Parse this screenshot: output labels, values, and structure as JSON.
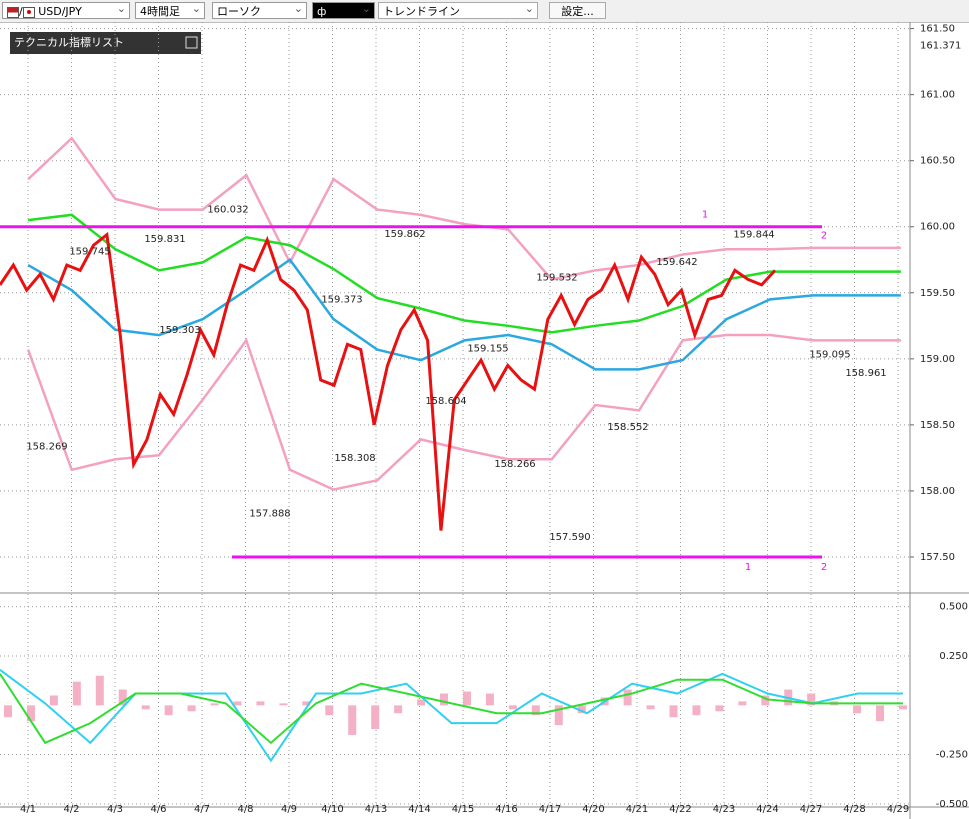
{
  "toolbar": {
    "symbol": "USD/JPY",
    "timeframe": "4時間足",
    "chart_style": "ローソク",
    "tool": "トレンドライン",
    "settings": "設定...",
    "indicator_list": "テクニカル指標リスト"
  },
  "chart_data": [
    {
      "type": "line",
      "categories": [
        "4/1",
        "4/2",
        "4/3",
        "4/6",
        "4/7",
        "4/8",
        "4/9",
        "4/10",
        "4/13",
        "4/14",
        "4/15",
        "4/16",
        "4/17",
        "4/20",
        "4/21",
        "4/22",
        "4/23",
        "4/24",
        "4/27",
        "4/28",
        "4/29"
      ],
      "ylim": [
        157.25,
        161.55
      ],
      "yticks": [
        {
          "value": 161.5,
          "label": "161.50"
        },
        {
          "value": 161,
          "label": "161.00"
        },
        {
          "value": 160.5,
          "label": "160.50"
        },
        {
          "value": 160,
          "label": "160.00"
        },
        {
          "value": 159.5,
          "label": "159.50"
        },
        {
          "value": 159,
          "label": "159.00"
        },
        {
          "value": 158.5,
          "label": "158.50"
        },
        {
          "value": 158,
          "label": "158.00"
        },
        {
          "value": 157.5,
          "label": "157.50"
        }
      ],
      "price_label": {
        "value": 161.371,
        "label": "161.371"
      },
      "grid": true,
      "series": [
        {
          "name": "BB +2σ",
          "color": "#f4a0c0",
          "values": [
            160.36,
            160.67,
            160.21,
            160.13,
            160.13,
            160.39,
            159.73,
            160.36,
            160.13,
            160.09,
            160.02,
            159.98,
            159.6,
            159.67,
            159.71,
            159.79,
            159.83,
            159.83,
            159.84,
            159.84,
            159.84
          ]
        },
        {
          "name": "BB -2σ",
          "color": "#f4a0c0",
          "values": [
            159.07,
            158.16,
            158.24,
            158.27,
            158.69,
            159.14,
            158.16,
            158.01,
            158.08,
            158.39,
            158.31,
            158.24,
            158.24,
            158.65,
            158.61,
            159.14,
            159.18,
            159.18,
            159.14,
            159.14,
            159.14
          ]
        },
        {
          "name": "MA",
          "color": "#2aa8e0",
          "values": [
            159.71,
            159.52,
            159.22,
            159.18,
            159.3,
            159.52,
            159.75,
            159.3,
            159.07,
            158.99,
            159.14,
            159.18,
            159.11,
            158.92,
            158.92,
            158.99,
            159.3,
            159.45,
            159.48,
            159.48,
            159.48
          ]
        },
        {
          "name": "BB mid",
          "color": "#22dd22",
          "values": [
            160.05,
            160.09,
            159.83,
            159.67,
            159.73,
            159.92,
            159.86,
            159.68,
            159.46,
            159.38,
            159.29,
            159.25,
            159.2,
            159.25,
            159.29,
            159.4,
            159.6,
            159.66,
            159.66,
            159.66,
            159.66
          ]
        }
      ],
      "lagging_span": {
        "color": "#e81010",
        "values": [
          159.56,
          159.71,
          159.52,
          159.64,
          159.45,
          159.71,
          159.67,
          159.86,
          159.94,
          159.18,
          158.2,
          158.39,
          158.73,
          158.58,
          158.88,
          159.22,
          159.03,
          159.41,
          159.71,
          159.67,
          159.9,
          159.6,
          159.52,
          159.37,
          158.84,
          158.8,
          159.11,
          159.07,
          158.5,
          158.95,
          159.22,
          159.37,
          159.14,
          157.7,
          158.69,
          158.84,
          158.99,
          158.77,
          158.95,
          158.84,
          158.77,
          159.3,
          159.48,
          159.26,
          159.45,
          159.52,
          159.71,
          159.45,
          159.77,
          159.64,
          159.41,
          159.52,
          159.18,
          159.45,
          159.48,
          159.67,
          159.6,
          159.56,
          159.67
        ]
      },
      "trendlines": [
        {
          "value": 160,
          "color": "#ee10ee",
          "labels": [
            "1",
            "2"
          ]
        },
        {
          "value": 157.5,
          "color": "#ee10ee",
          "labels": [
            "1",
            "2"
          ]
        }
      ],
      "annotations": [
        {
          "value": 158.269,
          "label": "158.269"
        },
        {
          "value": 159.745,
          "label": "159.745"
        },
        {
          "value": 159.831,
          "label": "159.831"
        },
        {
          "value": 159.303,
          "label": "159.303"
        },
        {
          "value": 160.032,
          "label": "160.032"
        },
        {
          "value": 157.888,
          "label": "157.888"
        },
        {
          "value": 159.373,
          "label": "159.373"
        },
        {
          "value": 158.308,
          "label": "158.308"
        },
        {
          "value": 159.862,
          "label": "159.862"
        },
        {
          "value": 158.604,
          "label": "158.604"
        },
        {
          "value": 159.155,
          "label": "159.155"
        },
        {
          "value": 158.266,
          "label": "158.266"
        },
        {
          "value": 159.532,
          "label": "159.532"
        },
        {
          "value": 157.59,
          "label": "157.590"
        },
        {
          "value": 159.642,
          "label": "159.642"
        },
        {
          "value": 158.552,
          "label": "158.552"
        },
        {
          "value": 159.844,
          "label": "159.844"
        },
        {
          "value": 159.095,
          "label": "159.095"
        },
        {
          "value": 158.961,
          "label": "158.961"
        }
      ]
    },
    {
      "type": "macd",
      "ylim": [
        -0.505,
        0.534
      ],
      "yticks": [
        {
          "value": 0.5,
          "label": "0.500"
        },
        {
          "value": 0.25,
          "label": "0.250"
        },
        {
          "value": -0.25,
          "label": "-0.250"
        },
        {
          "value": -0.5,
          "label": "-0.500"
        }
      ],
      "histogram": {
        "color": "#f4b0c4",
        "values": [
          -0.06,
          -0.08,
          0.05,
          0.12,
          0.15,
          0.08,
          -0.02,
          -0.05,
          -0.03,
          0.01,
          0.02,
          0.02,
          0.01,
          0.02,
          -0.05,
          -0.15,
          -0.12,
          -0.04,
          0.03,
          0.06,
          0.07,
          0.06,
          -0.02,
          -0.05,
          -0.1,
          -0.04,
          0.04,
          0.08,
          -0.02,
          -0.06,
          -0.05,
          -0.03,
          0.02,
          0.05,
          0.08,
          0.06,
          0.02,
          -0.04,
          -0.08,
          -0.02
        ]
      },
      "series": [
        {
          "name": "MACD",
          "color": "#30d0f0",
          "values": [
            0.18,
            0.01,
            -0.19,
            0.06,
            0.06,
            0.06,
            -0.28,
            0.06,
            0.06,
            0.11,
            -0.09,
            -0.09,
            0.06,
            -0.04,
            0.11,
            0.06,
            0.16,
            0.06,
            0.01,
            0.06,
            0.06
          ]
        },
        {
          "name": "Signal",
          "color": "#30dd30",
          "values": [
            0.16,
            -0.19,
            -0.09,
            0.06,
            0.06,
            0.01,
            -0.19,
            0.01,
            0.11,
            0.06,
            0.01,
            -0.04,
            -0.04,
            0.01,
            0.06,
            0.13,
            0.13,
            0.03,
            0.01,
            0.01,
            0.01
          ]
        }
      ]
    }
  ]
}
